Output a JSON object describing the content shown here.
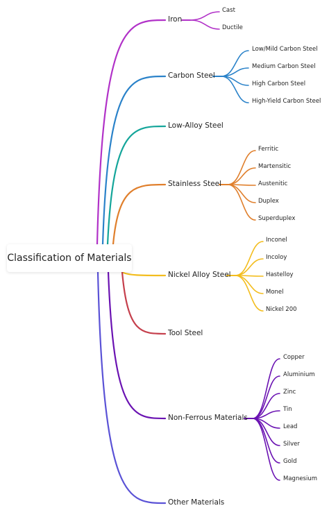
{
  "root": {
    "label": "Classification of Materials"
  },
  "branches": [
    {
      "label": "Iron",
      "color": "#b131c8",
      "children": [
        "Cast",
        "Ductile"
      ]
    },
    {
      "label": "Carbon Steel",
      "color": "#2a82c9",
      "children": [
        "Low/Mild Carbon Steel",
        "Medium Carbon Steel",
        "High Carbon Steel",
        "High-Yield Carbon Steel"
      ]
    },
    {
      "label": "Low-Alloy Steel",
      "color": "#14a59a",
      "children": []
    },
    {
      "label": "Stainless Steel",
      "color": "#e07f2c",
      "children": [
        "Ferritic",
        "Martensitic",
        "Austenitic",
        "Duplex",
        "Superduplex"
      ]
    },
    {
      "label": "Nickel Alloy Steel",
      "color": "#f3bd1e",
      "children": [
        "Inconel",
        "Incoloy",
        "Hastelloy",
        "Monel",
        "Nickel 200"
      ]
    },
    {
      "label": "Tool Steel",
      "color": "#c53f4c",
      "children": []
    },
    {
      "label": "Non-Ferrous Materials",
      "color": "#6a12b2",
      "children": [
        "Copper",
        "Aluminium",
        "Zinc",
        "Tin",
        "Lead",
        "Silver",
        "Gold",
        "Magnesium"
      ]
    },
    {
      "label": "Other Materials",
      "color": "#5a52d6",
      "children": []
    }
  ]
}
